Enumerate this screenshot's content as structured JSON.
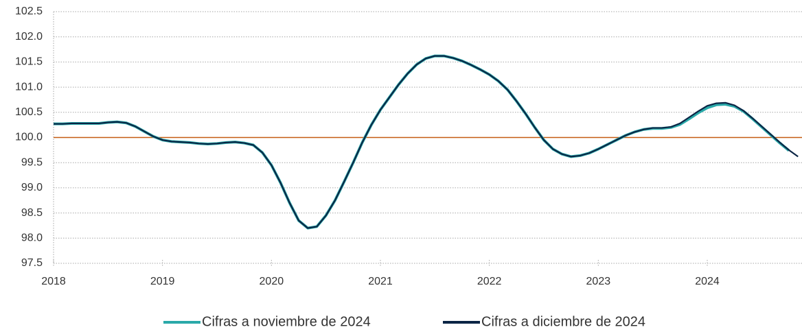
{
  "chart_data": {
    "type": "line",
    "categories": [
      "2018",
      null,
      null,
      null,
      null,
      null,
      null,
      null,
      null,
      null,
      null,
      null,
      "2019",
      null,
      null,
      null,
      null,
      null,
      null,
      null,
      null,
      null,
      null,
      null,
      "2020",
      null,
      null,
      null,
      null,
      null,
      null,
      null,
      null,
      null,
      null,
      null,
      "2021",
      null,
      null,
      null,
      null,
      null,
      null,
      null,
      null,
      null,
      null,
      null,
      "2022",
      null,
      null,
      null,
      null,
      null,
      null,
      null,
      null,
      null,
      null,
      null,
      "2023",
      null,
      null,
      null,
      null,
      null,
      null,
      null,
      null,
      null,
      null,
      null,
      "2024",
      null,
      null,
      null,
      null,
      null,
      null,
      null,
      null,
      null,
      null
    ],
    "series": [
      {
        "name": "Cifras a noviembre de 2024",
        "color": "#2aa9a9",
        "values": [
          100.27,
          100.27,
          100.28,
          100.28,
          100.28,
          100.28,
          100.3,
          100.31,
          100.29,
          100.22,
          100.12,
          100.02,
          99.95,
          99.92,
          99.91,
          99.9,
          99.88,
          99.87,
          99.88,
          99.9,
          99.91,
          99.89,
          99.85,
          99.7,
          99.45,
          99.1,
          98.7,
          98.35,
          98.2,
          98.23,
          98.45,
          98.75,
          99.12,
          99.5,
          99.9,
          100.25,
          100.55,
          100.8,
          101.05,
          101.27,
          101.45,
          101.57,
          101.62,
          101.62,
          101.58,
          101.52,
          101.44,
          101.35,
          101.25,
          101.12,
          100.95,
          100.72,
          100.47,
          100.2,
          99.95,
          99.77,
          99.67,
          99.62,
          99.64,
          99.69,
          99.77,
          99.86,
          99.95,
          100.04,
          100.11,
          100.16,
          100.18,
          100.18,
          100.2,
          100.26,
          100.37,
          100.49,
          100.59,
          100.65,
          100.66,
          100.62,
          100.52,
          100.37,
          100.21,
          100.05,
          99.89,
          99.74,
          null
        ]
      },
      {
        "name": "Cifras a diciembre de 2024",
        "color": "#0b2545",
        "values": [
          100.27,
          100.27,
          100.28,
          100.28,
          100.28,
          100.28,
          100.3,
          100.31,
          100.29,
          100.22,
          100.12,
          100.02,
          99.95,
          99.92,
          99.91,
          99.9,
          99.88,
          99.87,
          99.88,
          99.9,
          99.91,
          99.89,
          99.85,
          99.7,
          99.45,
          99.1,
          98.7,
          98.35,
          98.2,
          98.23,
          98.45,
          98.75,
          99.12,
          99.5,
          99.9,
          100.25,
          100.55,
          100.8,
          101.05,
          101.27,
          101.45,
          101.57,
          101.62,
          101.62,
          101.58,
          101.52,
          101.44,
          101.35,
          101.25,
          101.12,
          100.95,
          100.72,
          100.47,
          100.2,
          99.95,
          99.77,
          99.67,
          99.62,
          99.64,
          99.69,
          99.77,
          99.86,
          99.95,
          100.04,
          100.11,
          100.16,
          100.19,
          100.19,
          100.21,
          100.28,
          100.4,
          100.52,
          100.63,
          100.68,
          100.69,
          100.64,
          100.53,
          100.38,
          100.22,
          100.06,
          99.9,
          99.75,
          99.62
        ]
      }
    ],
    "reference_line": 100,
    "reference_color": "#c55a11",
    "ylim": [
      97.5,
      102.5
    ],
    "yticks": [
      {
        "value": 97.5,
        "label": "97.5"
      },
      {
        "value": 98,
        "label": "98.0"
      },
      98.5,
      {
        "value": 99,
        "label": "99.0"
      },
      99.5,
      {
        "value": 100,
        "label": "100.0"
      },
      100.5,
      {
        "value": 101,
        "label": "101.0"
      },
      101.5,
      {
        "value": 102,
        "label": "102.0"
      },
      102.5
    ],
    "grid": true,
    "legend": "bottom"
  }
}
